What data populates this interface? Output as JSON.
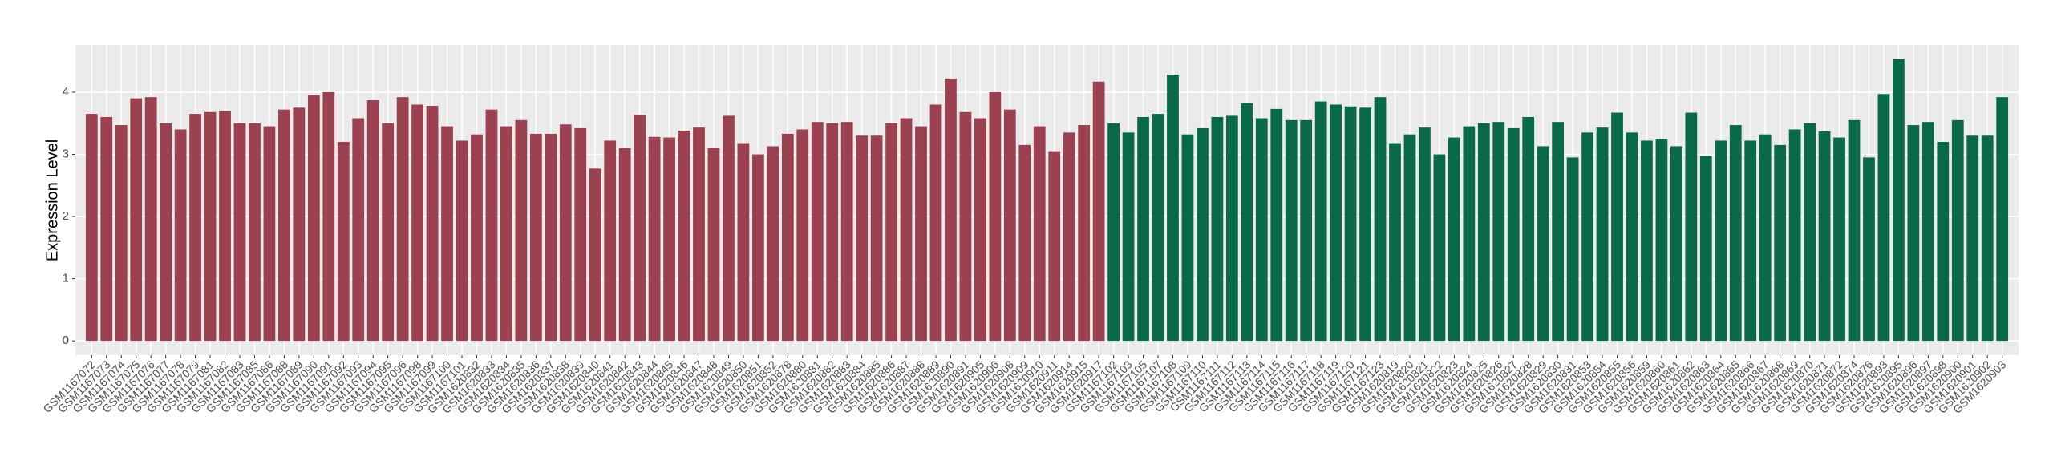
{
  "chart_data": {
    "type": "bar",
    "y_label": "Expression Level",
    "categories": [
      "GSM1167072",
      "GSM1167073",
      "GSM1167074",
      "GSM1167075",
      "GSM1167076",
      "GSM1167077",
      "GSM1167078",
      "GSM1167079",
      "GSM1167081",
      "GSM1167082",
      "GSM1167083",
      "GSM1167085",
      "GSM1167086",
      "GSM1167088",
      "GSM1167089",
      "GSM1167090",
      "GSM1167091",
      "GSM1167092",
      "GSM1167093",
      "GSM1167094",
      "GSM1167095",
      "GSM1167096",
      "GSM1167098",
      "GSM1167099",
      "GSM1167100",
      "GSM1167101",
      "GSM1620832",
      "GSM1620833",
      "GSM1620834",
      "GSM1620835",
      "GSM1620836",
      "GSM1620837",
      "GSM1620838",
      "GSM1620839",
      "GSM1620840",
      "GSM1620841",
      "GSM1620842",
      "GSM1620843",
      "GSM1620844",
      "GSM1620845",
      "GSM1620846",
      "GSM1620847",
      "GSM1620848",
      "GSM1620849",
      "GSM1620850",
      "GSM1620851",
      "GSM1620852",
      "GSM1620878",
      "GSM1620880",
      "GSM1620881",
      "GSM1620882",
      "GSM1620883",
      "GSM1620884",
      "GSM1620885",
      "GSM1620886",
      "GSM1620887",
      "GSM1620888",
      "GSM1620889",
      "GSM1620890",
      "GSM1620891",
      "GSM1620905",
      "GSM1620906",
      "GSM1620908",
      "GSM1620909",
      "GSM1620910",
      "GSM1620911",
      "GSM1620914",
      "GSM1620915",
      "GSM1620917",
      "GSM1167102",
      "GSM1167103",
      "GSM1167105",
      "GSM1167107",
      "GSM1167108",
      "GSM1167109",
      "GSM1167110",
      "GSM1167111",
      "GSM1167112",
      "GSM1167113",
      "GSM1167114",
      "GSM1167115",
      "GSM1167116",
      "GSM1167117",
      "GSM1167118",
      "GSM1167119",
      "GSM1167120",
      "GSM1167121",
      "GSM1167123",
      "GSM1620819",
      "GSM1620820",
      "GSM1620821",
      "GSM1620822",
      "GSM1620823",
      "GSM1620824",
      "GSM1620825",
      "GSM1620826",
      "GSM1620827",
      "GSM1620828",
      "GSM1620829",
      "GSM1620830",
      "GSM1620831",
      "GSM1620853",
      "GSM1620854",
      "GSM1620855",
      "GSM1620856",
      "GSM1620859",
      "GSM1620860",
      "GSM1620861",
      "GSM1620862",
      "GSM1620863",
      "GSM1620864",
      "GSM1620865",
      "GSM1620866",
      "GSM1620867",
      "GSM1620868",
      "GSM1620869",
      "GSM1620870",
      "GSM1620871",
      "GSM1620872",
      "GSM1620874",
      "GSM1620876",
      "GSM1620893",
      "GSM1620895",
      "GSM1620896",
      "GSM1620897",
      "GSM1620898",
      "GSM1620900",
      "GSM1620901",
      "GSM1620902",
      "GSM1620903"
    ],
    "values": [
      3.65,
      3.6,
      3.47,
      3.9,
      3.92,
      3.5,
      3.4,
      3.65,
      3.68,
      3.7,
      3.5,
      3.5,
      3.45,
      3.72,
      3.75,
      3.95,
      4.0,
      3.2,
      3.58,
      3.87,
      3.5,
      3.92,
      3.8,
      3.78,
      3.45,
      3.22,
      3.32,
      3.72,
      3.45,
      3.55,
      3.33,
      3.33,
      3.48,
      3.42,
      2.77,
      3.22,
      3.1,
      3.63,
      3.28,
      3.27,
      3.38,
      3.43,
      3.1,
      3.62,
      3.18,
      3.0,
      3.13,
      3.33,
      3.4,
      3.52,
      3.5,
      3.52,
      3.3,
      3.3,
      3.5,
      3.58,
      3.45,
      3.8,
      4.22,
      3.68,
      3.58,
      4.0,
      3.72,
      3.15,
      3.45,
      3.05,
      3.35,
      3.47,
      4.17,
      3.5,
      3.35,
      3.6,
      3.65,
      4.28,
      3.32,
      3.42,
      3.6,
      3.62,
      3.82,
      3.58,
      3.73,
      3.55,
      3.55,
      3.85,
      3.8,
      3.77,
      3.75,
      3.92,
      3.18,
      3.32,
      3.43,
      3.0,
      3.27,
      3.45,
      3.5,
      3.52,
      3.42,
      3.6,
      3.13,
      3.52,
      2.95,
      3.35,
      3.43,
      3.67,
      3.35,
      3.22,
      3.25,
      3.13,
      3.67,
      2.98,
      3.22,
      3.47,
      3.22,
      3.32,
      3.15,
      3.4,
      3.5,
      3.37,
      3.27,
      3.55,
      2.95,
      3.97,
      4.53,
      3.47,
      3.52,
      3.2,
      3.55,
      3.3,
      3.3,
      3.92
    ],
    "colors": [
      "#9b4150",
      "#9b4150",
      "#9b4150",
      "#9b4150",
      "#9b4150",
      "#9b4150",
      "#9b4150",
      "#9b4150",
      "#9b4150",
      "#9b4150",
      "#9b4150",
      "#9b4150",
      "#9b4150",
      "#9b4150",
      "#9b4150",
      "#9b4150",
      "#9b4150",
      "#9b4150",
      "#9b4150",
      "#9b4150",
      "#9b4150",
      "#9b4150",
      "#9b4150",
      "#9b4150",
      "#9b4150",
      "#9b4150",
      "#9b4150",
      "#9b4150",
      "#9b4150",
      "#9b4150",
      "#9b4150",
      "#9b4150",
      "#9b4150",
      "#9b4150",
      "#9b4150",
      "#9b4150",
      "#9b4150",
      "#9b4150",
      "#9b4150",
      "#9b4150",
      "#9b4150",
      "#9b4150",
      "#9b4150",
      "#9b4150",
      "#9b4150",
      "#9b4150",
      "#9b4150",
      "#9b4150",
      "#9b4150",
      "#9b4150",
      "#9b4150",
      "#9b4150",
      "#9b4150",
      "#9b4150",
      "#9b4150",
      "#9b4150",
      "#9b4150",
      "#9b4150",
      "#9b4150",
      "#9b4150",
      "#9b4150",
      "#9b4150",
      "#9b4150",
      "#9b4150",
      "#9b4150",
      "#9b4150",
      "#9b4150",
      "#9b4150",
      "#9b4150",
      "#0a6a48",
      "#0a6a48",
      "#0a6a48",
      "#0a6a48",
      "#0a6a48",
      "#0a6a48",
      "#0a6a48",
      "#0a6a48",
      "#0a6a48",
      "#0a6a48",
      "#0a6a48",
      "#0a6a48",
      "#0a6a48",
      "#0a6a48",
      "#0a6a48",
      "#0a6a48",
      "#0a6a48",
      "#0a6a48",
      "#0a6a48",
      "#0a6a48",
      "#0a6a48",
      "#0a6a48",
      "#0a6a48",
      "#0a6a48",
      "#0a6a48",
      "#0a6a48",
      "#0a6a48",
      "#0a6a48",
      "#0a6a48",
      "#0a6a48",
      "#0a6a48",
      "#0a6a48",
      "#0a6a48",
      "#0a6a48",
      "#0a6a48",
      "#0a6a48",
      "#0a6a48",
      "#0a6a48",
      "#0a6a48",
      "#0a6a48",
      "#0a6a48",
      "#0a6a48",
      "#0a6a48",
      "#0a6a48",
      "#0a6a48",
      "#0a6a48",
      "#0a6a48",
      "#0a6a48",
      "#0a6a48",
      "#0a6a48",
      "#0a6a48",
      "#0a6a48",
      "#0a6a48",
      "#0a6a48",
      "#0a6a48",
      "#0a6a48",
      "#0a6a48",
      "#0a6a48",
      "#0a6a48",
      "#0a6a48",
      "#0a6a48"
    ],
    "ylim": [
      -0.23,
      4.76
    ],
    "yticks": [
      0,
      1,
      2,
      3,
      4
    ],
    "grid": true
  }
}
